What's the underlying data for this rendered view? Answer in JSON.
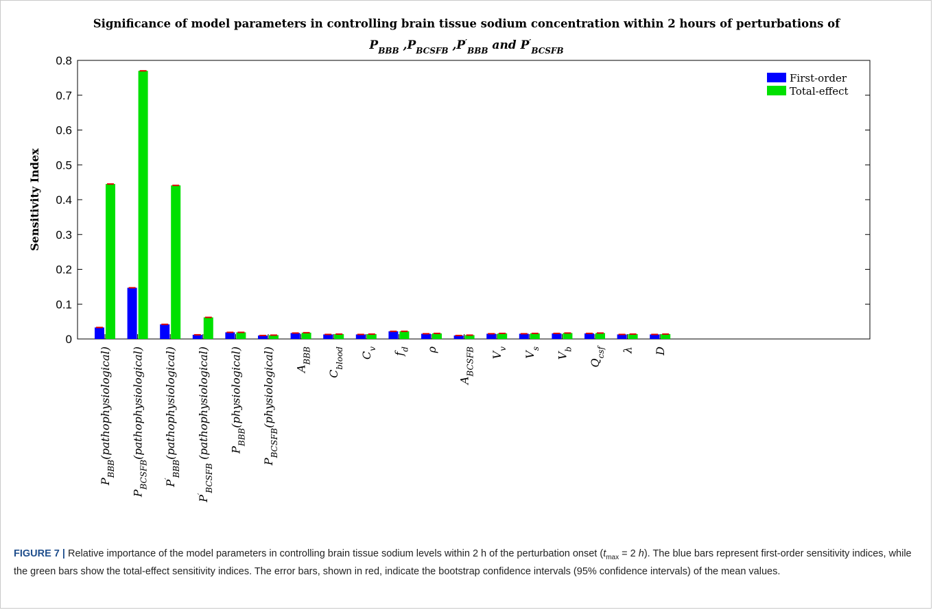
{
  "chart_data": {
    "type": "bar",
    "title_line1": "Significance of model parameters in controlling brain tissue sodium concentration within 2 hours of perturbations of",
    "title_line2": [
      {
        "t": "P",
        "sub": "BBB"
      },
      {
        "t": " ,"
      },
      {
        "t": "P",
        "sub": "BCSFB"
      },
      {
        "t": " ,"
      },
      {
        "t": "P",
        "sup": "′",
        "sub": "BBB"
      },
      {
        "t": " and "
      },
      {
        "t": "P",
        "sup": "′",
        "sub": "BCSFB"
      }
    ],
    "ylabel": "Sensitivity Index",
    "xlabel": "",
    "ylim": [
      0,
      0.8
    ],
    "yticks": [
      "0",
      "0.1",
      "0.2",
      "0.3",
      "0.4",
      "0.5",
      "0.6",
      "0.7",
      "0.8"
    ],
    "legend_position": "top-right",
    "categories": [
      {
        "base": "P",
        "sub": "BBB",
        "paren": "(pathophysiological)"
      },
      {
        "base": "P",
        "sub": "BCSFB",
        "paren": "(pathophysiological)"
      },
      {
        "base": "P",
        "sup": "′",
        "sub": "BBB",
        "paren": "(pathophysiological)"
      },
      {
        "base": "P",
        "sup": "′",
        "sub": "BCSFB",
        "paren": " (pathophysiological)"
      },
      {
        "base": "P",
        "sub": "BBB",
        "paren": "(physiological)"
      },
      {
        "base": "P",
        "sub": "BCSFB",
        "paren": "(physiological)"
      },
      {
        "base": "A",
        "sub": "BBB"
      },
      {
        "base": "C",
        "sub": "blood"
      },
      {
        "base": "C",
        "sub": "v"
      },
      {
        "base": "f",
        "sub": "d"
      },
      {
        "base": "ρ"
      },
      {
        "base": "A",
        "sub": "BCSFB"
      },
      {
        "base": "V",
        "sub": "v"
      },
      {
        "base": "V",
        "sub": "s"
      },
      {
        "base": "V",
        "sub": "b"
      },
      {
        "base": "Q",
        "sub": "csf"
      },
      {
        "base": "λ"
      },
      {
        "base": "D"
      }
    ],
    "series": [
      {
        "name": "First-order",
        "color": "#0000ff",
        "values": [
          0.033,
          0.147,
          0.042,
          0.012,
          0.019,
          0.01,
          0.017,
          0.013,
          0.013,
          0.022,
          0.015,
          0.01,
          0.015,
          0.015,
          0.016,
          0.016,
          0.013,
          0.013
        ]
      },
      {
        "name": "Total-effect",
        "color": "#00e000",
        "values": [
          0.445,
          0.77,
          0.441,
          0.062,
          0.019,
          0.011,
          0.018,
          0.014,
          0.014,
          0.022,
          0.016,
          0.011,
          0.016,
          0.016,
          0.017,
          0.017,
          0.014,
          0.014
        ]
      }
    ],
    "errorbar_color": "#e00000",
    "grid": false
  },
  "caption": {
    "label": "FIGURE 7 |",
    "text_before": " Relative importance of the model parameters in controlling brain tissue sodium levels within 2 h of the perturbation onset (",
    "tvar": "t",
    "tsub": "max",
    "text_eq": " = 2 ",
    "tunit": "h",
    "text_after": "). The blue bars represent first-order sensitivity indices, while the green bars show the total-effect sensitivity indices. The error bars, shown in red, indicate the bootstrap confidence intervals (95% confidence intervals) of the mean values."
  }
}
